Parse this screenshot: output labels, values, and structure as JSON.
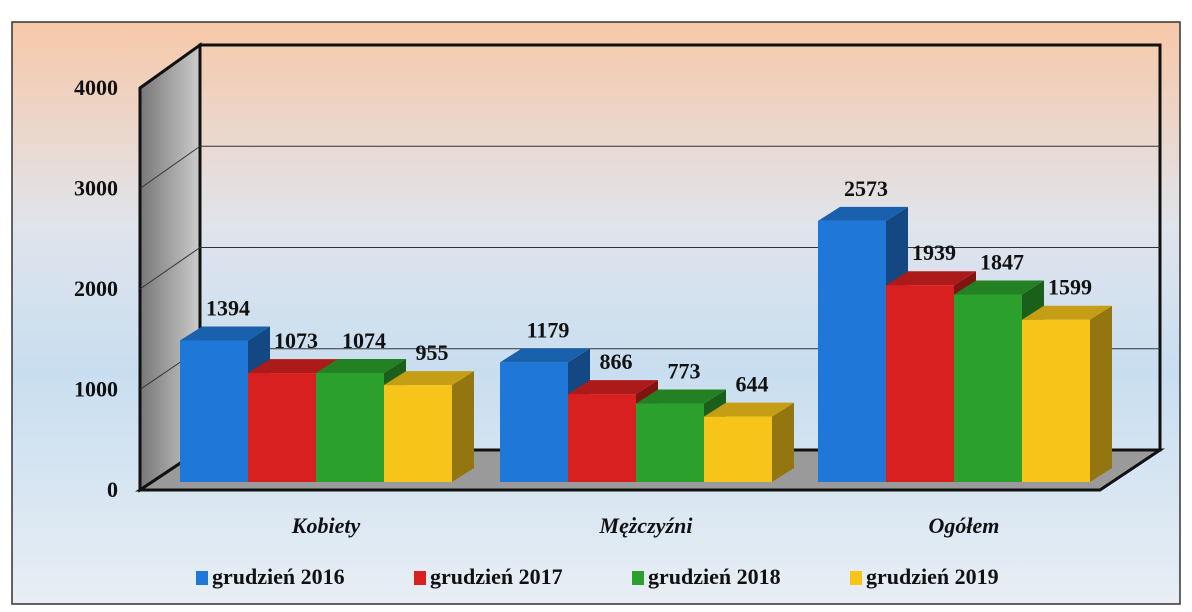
{
  "chart_data": {
    "type": "bar3d",
    "categories": [
      "Kobiety",
      "Mężczyźni",
      "Ogółem"
    ],
    "series": [
      {
        "name": "grudzień 2016",
        "color": "#1f78d8",
        "values": [
          1394,
          1179,
          2573
        ]
      },
      {
        "name": "grudzień 2017",
        "color": "#d82020",
        "values": [
          1073,
          866,
          1939
        ]
      },
      {
        "name": "grudzień 2018",
        "color": "#2ca02c",
        "values": [
          1074,
          773,
          1847
        ]
      },
      {
        "name": "grudzień 2019",
        "color": "#f7c51a",
        "values": [
          955,
          644,
          1599
        ]
      }
    ],
    "ylim": [
      0,
      4000
    ],
    "yticks": [
      0,
      1000,
      2000,
      3000,
      4000
    ],
    "grid": true,
    "legend": "bottom"
  }
}
